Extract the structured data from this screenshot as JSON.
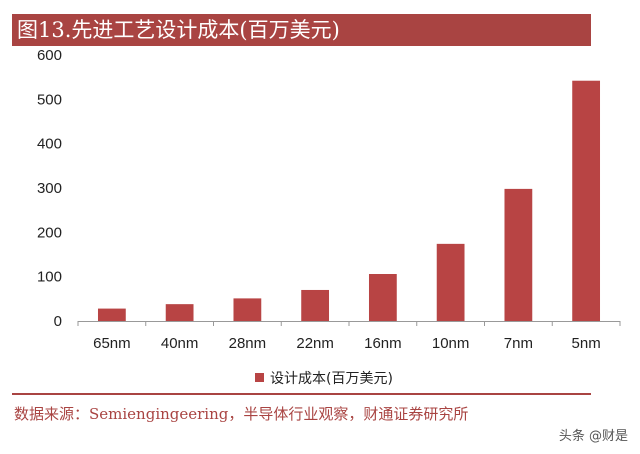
{
  "header": {
    "title": "图13.先进工艺设计成本(百万美元)"
  },
  "chart_data": {
    "type": "bar",
    "title": "图13.先进工艺设计成本(百万美元)",
    "categories": [
      "65nm",
      "40nm",
      "28nm",
      "22nm",
      "16nm",
      "10nm",
      "7nm",
      "5nm"
    ],
    "series": [
      {
        "name": "设计成本(百万美元)",
        "values": [
          28,
          38,
          51,
          70,
          106,
          174,
          298,
          542
        ]
      }
    ],
    "yticks": [
      "0",
      "100",
      "200",
      "300",
      "400",
      "500",
      "600"
    ],
    "ylim": [
      0,
      600
    ],
    "xlabel": "",
    "ylabel": "",
    "legend_position": "bottom",
    "grid": false,
    "bar_color": "#b84444"
  },
  "footer": {
    "source": "数据来源：Semiengingeering，半导体行业观察，财通证券研究所",
    "watermark": "头条 @财是"
  }
}
